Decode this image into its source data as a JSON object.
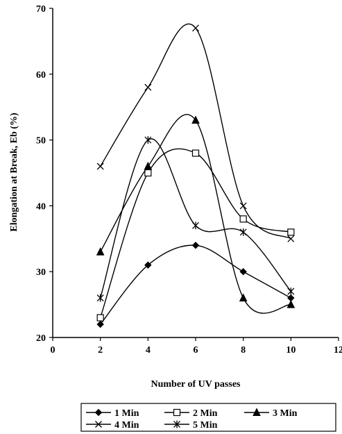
{
  "chart_data": {
    "type": "line",
    "title": "",
    "xlabel": "Number of UV passes",
    "ylabel": "Elongation at Break, Eb (%)",
    "xlim": [
      0,
      12
    ],
    "ylim": [
      20,
      70
    ],
    "xticks": [
      0,
      2,
      4,
      6,
      8,
      10,
      12
    ],
    "yticks": [
      20,
      30,
      40,
      50,
      60,
      70
    ],
    "grid": false,
    "legend_position": "bottom",
    "x": [
      2,
      4,
      6,
      8,
      10
    ],
    "series": [
      {
        "name": "1  Min",
        "marker": "diamond",
        "values": [
          22,
          31,
          34,
          30,
          26
        ]
      },
      {
        "name": "2  Min",
        "marker": "square-open",
        "values": [
          23,
          45,
          48,
          38,
          36
        ]
      },
      {
        "name": "3  Min",
        "marker": "triangle",
        "values": [
          33,
          46,
          53,
          26,
          25
        ]
      },
      {
        "name": "4  Min",
        "marker": "x",
        "values": [
          46,
          58,
          67,
          40,
          35
        ]
      },
      {
        "name": "5  Min",
        "marker": "asterisk",
        "values": [
          26,
          50,
          37,
          36,
          27
        ]
      }
    ]
  }
}
